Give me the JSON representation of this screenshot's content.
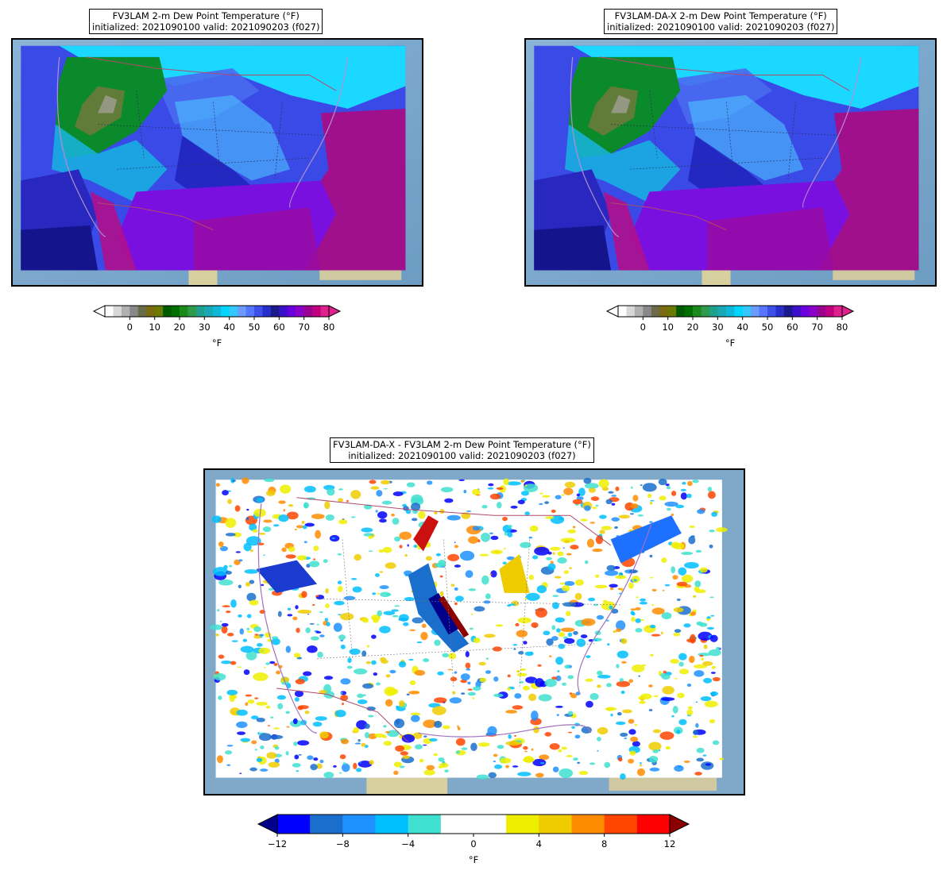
{
  "panels": [
    {
      "id": "p1",
      "title_line1": "FV3LAM 2-m Dew Point Temperature (°F)",
      "title_line2": "initialized: 2021090100 valid: 2021090203 (f027)",
      "type": "dewpoint"
    },
    {
      "id": "p2",
      "title_line1": "FV3LAM-DA-X 2-m Dew Point Temperature (°F)",
      "title_line2": "initialized: 2021090100 valid: 2021090203 (f027)",
      "type": "dewpoint"
    },
    {
      "id": "p3",
      "title_line1": "FV3LAM-DA-X - FV3LAM 2-m Dew Point Temperature (°F)",
      "title_line2": "initialized: 2021090100 valid: 2021090203 (f027)",
      "type": "difference"
    }
  ],
  "colorbar_dewpoint": {
    "unit": "°F",
    "ticks": [
      "0",
      "10",
      "20",
      "30",
      "40",
      "50",
      "60",
      "70",
      "80"
    ],
    "colors": [
      "#ffffff",
      "#d8d8d8",
      "#b0b0b0",
      "#888888",
      "#6b6b4a",
      "#7a6a10",
      "#6b7a00",
      "#005a00",
      "#006e00",
      "#1a8a1a",
      "#2e9a4a",
      "#1fa08c",
      "#1aa8b4",
      "#0fb8d8",
      "#00d6ff",
      "#33c8ff",
      "#6a9bff",
      "#5577ff",
      "#3a50e8",
      "#2630c8",
      "#1a1a8c",
      "#3a10c8",
      "#6a00e0",
      "#8a00c8",
      "#9a0090",
      "#c00080",
      "#e0208c"
    ],
    "min": -10,
    "max": 80
  },
  "colorbar_difference": {
    "unit": "°F",
    "ticks": [
      "−12",
      "−8",
      "−4",
      "0",
      "4",
      "8",
      "12"
    ],
    "colors": [
      "#0000ff",
      "#1a6ecc",
      "#1e90ff",
      "#00bfff",
      "#40e0d0",
      "#ffffff",
      "#ffffff",
      "#eeee00",
      "#eecc00",
      "#ff8c00",
      "#ff4500",
      "#ff0000"
    ],
    "extend_low": "#00008b",
    "extend_high": "#8b0000"
  }
}
